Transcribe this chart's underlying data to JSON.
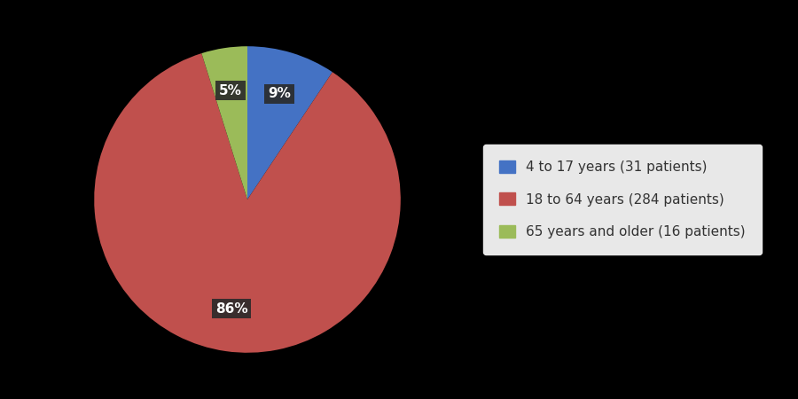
{
  "slices": [
    31,
    284,
    16
  ],
  "labels": [
    "4 to 17 years (31 patients)",
    "18 to 64 years (284 patients)",
    "65 years and older (16 patients)"
  ],
  "colors": [
    "#4472C4",
    "#C0504D",
    "#9BBB59"
  ],
  "percentages": [
    "9%",
    "86%",
    "5%"
  ],
  "background_color": "#000000",
  "legend_bg_color": "#E8E8E8",
  "startangle": 90,
  "pct_distance": 0.72,
  "legend_fontsize": 11
}
